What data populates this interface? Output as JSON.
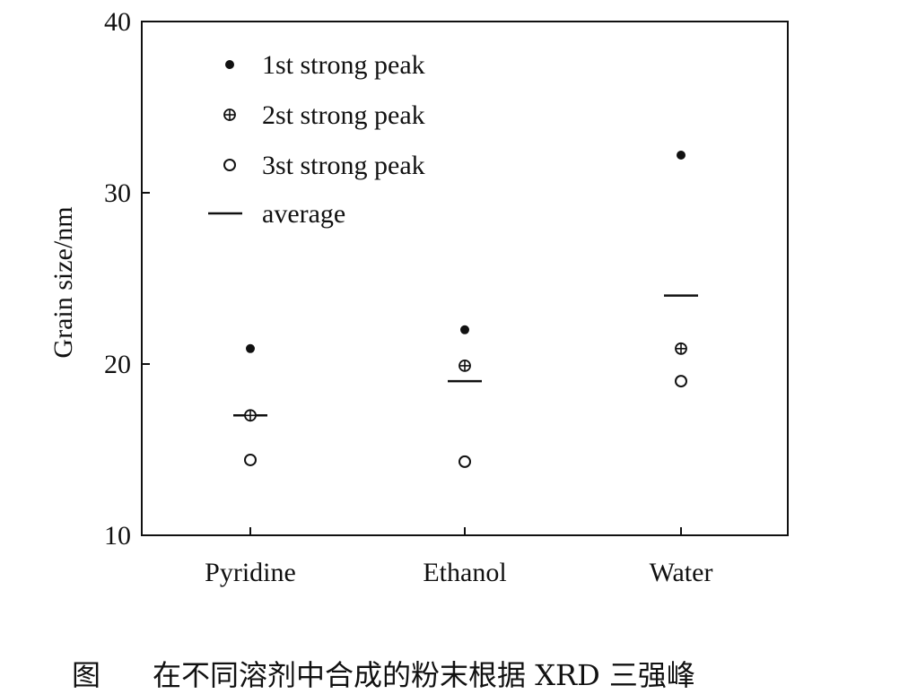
{
  "caption": {
    "figure_label": "图",
    "text": "在不同溶剂中合成的粉末根据 XRD 三强峰"
  },
  "chart_data": {
    "type": "scatter",
    "categories": [
      "Pyridine",
      "Ethanol",
      "Water"
    ],
    "ylabel": "Grain size/nm",
    "ylim": [
      10,
      40
    ],
    "yticks": [
      10,
      20,
      30,
      40
    ],
    "grid": false,
    "legend_position": "top-left",
    "legend": [
      {
        "key": "first",
        "label": "1st strong peak",
        "marker": "filled-circle"
      },
      {
        "key": "second",
        "label": "2st strong peak",
        "marker": "circle-plus"
      },
      {
        "key": "third",
        "label": "3st strong peak",
        "marker": "open-circle"
      },
      {
        "key": "average",
        "label": "average",
        "marker": "dash"
      }
    ],
    "series": [
      {
        "key": "first",
        "values": [
          20.9,
          22.0,
          32.2
        ]
      },
      {
        "key": "second",
        "values": [
          17.0,
          19.9,
          20.9
        ]
      },
      {
        "key": "third",
        "values": [
          14.4,
          14.3,
          19.0
        ]
      },
      {
        "key": "average",
        "values": [
          17.0,
          19.0,
          24.0
        ]
      }
    ]
  }
}
